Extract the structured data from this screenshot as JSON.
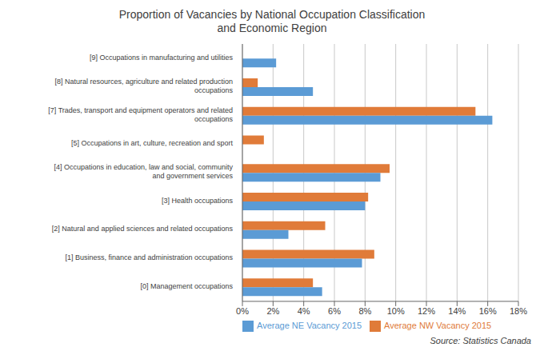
{
  "chart_data": {
    "type": "bar",
    "orientation": "horizontal",
    "title": "Proportion of Vacancies by National Occupation Classification\nand Economic Region",
    "categories": [
      "[0] Management occupations",
      "[1] Business, finance and administration occupations",
      "[2] Natural and applied sciences and related occupations",
      "[3] Health occupations",
      "[4] Occupations in education, law and social, community\nand government services",
      "[5] Occupations in art, culture, recreation and sport",
      "[7] Trades, transport and equipment operators and related\noccupations",
      "[8] Natural resources, agriculture and related production\noccupations",
      "[9] Occupations in manufacturing and utilities"
    ],
    "series": [
      {
        "name": "Average NW Vacancy 2015",
        "color": "#E07B39",
        "values": [
          0.046,
          0.086,
          0.054,
          0.082,
          0.096,
          0.014,
          0.152,
          0.01,
          0.0
        ]
      },
      {
        "name": "Average NE Vacancy 2015",
        "color": "#5B9BD5",
        "values": [
          0.052,
          0.078,
          0.03,
          0.08,
          0.09,
          0.0,
          0.163,
          0.046,
          0.022
        ]
      }
    ],
    "xlim": [
      0,
      0.18
    ],
    "xticks": [
      {
        "value": 0.0,
        "label": "0%"
      },
      {
        "value": 0.02,
        "label": "2%"
      },
      {
        "value": 0.04,
        "label": "4%"
      },
      {
        "value": 0.06,
        "label": "6%"
      },
      {
        "value": 0.08,
        "label": "8%"
      },
      {
        "value": 0.1,
        "label": "10%"
      },
      {
        "value": 0.12,
        "label": "12%"
      },
      {
        "value": 0.14,
        "label": "14%"
      },
      {
        "value": 0.16,
        "label": "16%"
      },
      {
        "value": 0.18,
        "label": "18%"
      }
    ],
    "grid": true,
    "legend": "lower left",
    "annotations": [
      "Source: Statistics Canada"
    ]
  }
}
